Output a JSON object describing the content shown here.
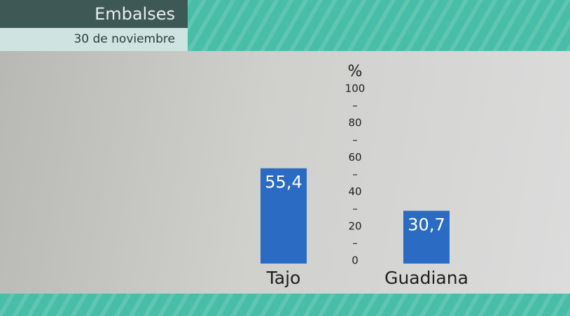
{
  "chart_data": {
    "type": "bar",
    "title": "Embalses",
    "subtitle": "30 de noviembre",
    "y_label": "%",
    "categories": [
      "Tajo",
      "Guadiana"
    ],
    "values": [
      55.4,
      30.7
    ],
    "value_labels": [
      "55,4",
      "30,7"
    ],
    "color": "#2b6bc3",
    "ylim": [
      0,
      100
    ],
    "yticks": [
      0,
      20,
      40,
      60,
      80,
      100
    ]
  }
}
